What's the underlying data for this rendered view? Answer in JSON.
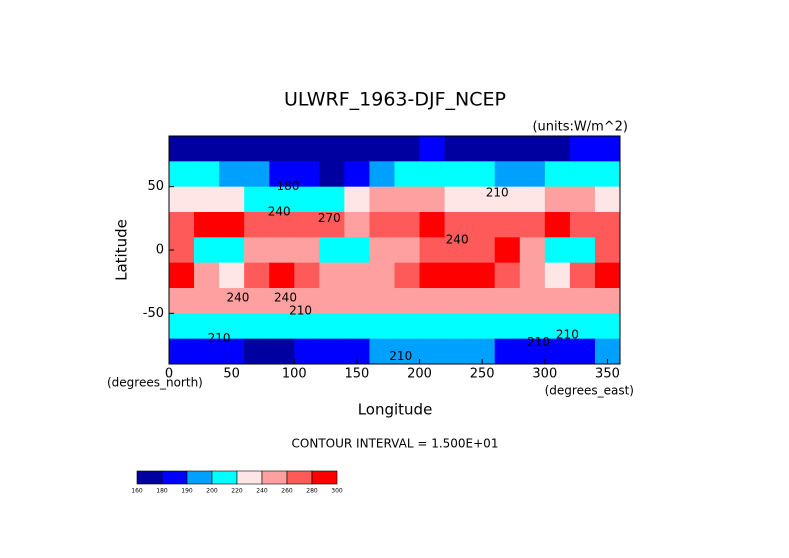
{
  "chart_data": {
    "type": "heatmap",
    "title": "ULWRF_1963-DJF_NCEP",
    "subtitle": "(units:W/m^2)",
    "x_label": "Longitude",
    "y_label": "Latitude",
    "x_unit": "(degrees_east)",
    "y_unit": "(degrees_north)",
    "annotation": "CONTOUR INTERVAL = 1.500E+01",
    "xlim": [
      0,
      360
    ],
    "ylim": [
      -90,
      90
    ],
    "xticks": [
      0,
      50,
      100,
      150,
      200,
      250,
      300,
      350
    ],
    "yticks": [
      -50,
      0,
      50
    ],
    "x": [
      0,
      20,
      40,
      60,
      80,
      100,
      120,
      140,
      160,
      180,
      200,
      220,
      240,
      260,
      280,
      300,
      320,
      340
    ],
    "y": [
      80,
      60,
      40,
      20,
      0,
      -20,
      -40,
      -60,
      -80
    ],
    "values": [
      [
        175,
        175,
        172,
        170,
        168,
        168,
        170,
        172,
        175,
        178,
        180,
        178,
        175,
        172,
        170,
        175,
        185,
        180
      ],
      [
        205,
        200,
        195,
        190,
        185,
        180,
        178,
        182,
        190,
        205,
        210,
        205,
        200,
        195,
        190,
        200,
        210,
        212
      ],
      [
        235,
        230,
        225,
        215,
        205,
        200,
        215,
        230,
        240,
        245,
        240,
        235,
        230,
        225,
        235,
        245,
        240,
        238
      ],
      [
        275,
        280,
        280,
        275,
        260,
        265,
        265,
        255,
        265,
        275,
        280,
        275,
        270,
        265,
        275,
        280,
        275,
        270
      ],
      [
        265,
        215,
        210,
        245,
        255,
        250,
        215,
        210,
        240,
        255,
        265,
        270,
        275,
        280,
        255,
        205,
        215,
        260
      ],
      [
        285,
        240,
        225,
        270,
        280,
        270,
        255,
        240,
        255,
        275,
        280,
        285,
        285,
        275,
        250,
        225,
        265,
        285
      ],
      [
        255,
        250,
        245,
        250,
        250,
        245,
        245,
        250,
        250,
        245,
        245,
        250,
        250,
        245,
        245,
        250,
        250,
        250
      ],
      [
        205,
        205,
        205,
        200,
        205,
        210,
        205,
        205,
        205,
        200,
        205,
        205,
        200,
        205,
        205,
        210,
        205,
        205
      ],
      [
        185,
        185,
        180,
        175,
        175,
        180,
        185,
        185,
        190,
        195,
        195,
        195,
        190,
        185,
        180,
        180,
        185,
        190
      ]
    ],
    "contour_labels": [
      {
        "text": "240",
        "lon": 55,
        "lat": -38
      },
      {
        "text": "240",
        "lon": 93,
        "lat": -38
      },
      {
        "text": "240",
        "lon": 230,
        "lat": 8
      },
      {
        "text": "240",
        "lon": 88,
        "lat": 30
      },
      {
        "text": "270",
        "lon": 128,
        "lat": 25
      },
      {
        "text": "180",
        "lon": 95,
        "lat": 50
      },
      {
        "text": "210",
        "lon": 262,
        "lat": 45
      },
      {
        "text": "210",
        "lon": 105,
        "lat": -48
      },
      {
        "text": "210",
        "lon": 40,
        "lat": -70
      },
      {
        "text": "210",
        "lon": 295,
        "lat": -73
      },
      {
        "text": "210",
        "lon": 318,
        "lat": -67
      },
      {
        "text": "210",
        "lon": 185,
        "lat": -84
      }
    ],
    "colorbar": {
      "levels": [
        160,
        180,
        190,
        200,
        220,
        240,
        260,
        280,
        300
      ],
      "colors": [
        "#0000a0",
        "#0000ff",
        "#00a0ff",
        "#00ffff",
        "#ffe6e6",
        "#ffa0a0",
        "#ff5a5a",
        "#ff0000"
      ]
    }
  }
}
